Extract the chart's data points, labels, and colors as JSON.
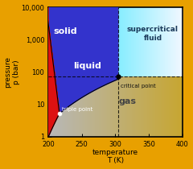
{
  "title": "",
  "xlabel": "temperature\nT (K)",
  "ylabel": "pressure\np (bar)",
  "xlim": [
    200,
    400
  ],
  "ylim_log": [
    1,
    10000
  ],
  "bg_color": "#e8a000",
  "solid_color": "#dd1111",
  "liquid_color": "#3333cc",
  "supercritical_color": "#88eeff",
  "triple_point": [
    216.6,
    5.18
  ],
  "critical_point": [
    304.2,
    73.8
  ],
  "triple_label": "triple point",
  "critical_label": "critical point",
  "solid_label": "solid",
  "liquid_label": "liquid",
  "gas_label": "gas",
  "supercritical_label": "supercritical\nfluid",
  "tick_label_fontsize": 6,
  "axis_label_fontsize": 6.5,
  "region_label_fontsize": 8
}
